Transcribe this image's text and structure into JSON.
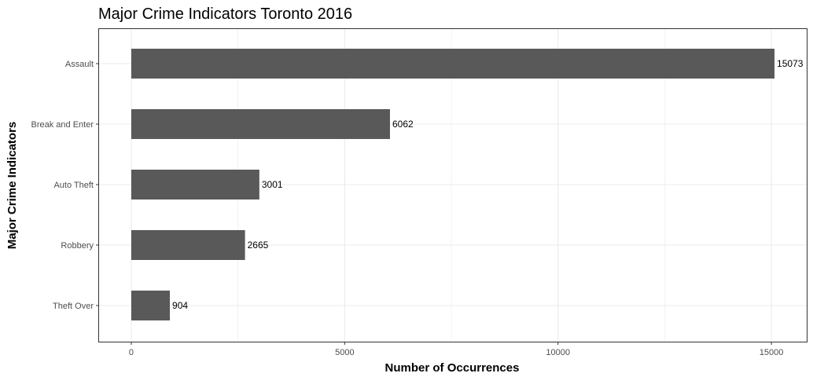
{
  "chart_data": {
    "type": "bar",
    "orientation": "horizontal",
    "title": "Major Crime Indicators Toronto 2016",
    "xlabel": "Number of Occurrences",
    "ylabel": "Major Crime Indicators",
    "categories": [
      "Assault",
      "Break and Enter",
      "Auto Theft",
      "Robbery",
      "Theft Over"
    ],
    "values": [
      15073,
      6062,
      3001,
      2665,
      904
    ],
    "data_labels": [
      "15073",
      "6062",
      "3001",
      "2665",
      "904"
    ],
    "xticks": [
      0,
      5000,
      10000,
      15000
    ],
    "xtick_labels": [
      "0",
      "5000",
      "10000",
      "15000"
    ],
    "xlim": [
      -755,
      15828
    ],
    "grid": true,
    "legend": "none",
    "colors": {
      "bar": "#595959",
      "grid": "#ebebeb",
      "panel_border": "#333333",
      "background": "#ffffff"
    }
  }
}
